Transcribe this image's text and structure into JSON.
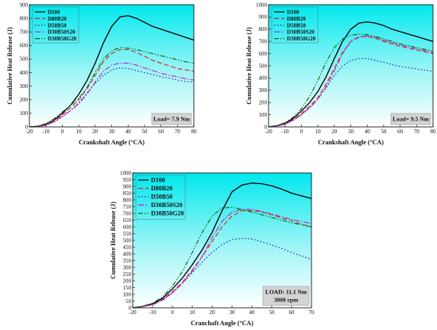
{
  "chart_data": [
    {
      "type": "line",
      "xlabel": "Crankshaft Angle (°CA)",
      "ylabel": "Cumulative Heat Release (J)",
      "xlim": [
        -20,
        80
      ],
      "ylim": [
        0,
        900
      ],
      "xticks": [
        -20,
        -10,
        0,
        10,
        20,
        30,
        40,
        50,
        60,
        70,
        80
      ],
      "yticks": [
        0,
        100,
        200,
        300,
        400,
        500,
        600,
        700,
        800,
        900
      ],
      "annotation": [
        "Load= 7.9 Nm"
      ],
      "legend_position": "top-left",
      "series": [
        {
          "name": "D100",
          "color": "#000000",
          "style": "solid",
          "x": [
            -20,
            -15,
            -10,
            -5,
            0,
            5,
            10,
            15,
            20,
            25,
            30,
            35,
            40,
            45,
            50,
            55,
            60,
            65,
            70,
            75,
            80
          ],
          "y": [
            0,
            5,
            20,
            50,
            100,
            160,
            240,
            340,
            470,
            620,
            740,
            810,
            820,
            800,
            770,
            740,
            720,
            700,
            680,
            660,
            640
          ]
        },
        {
          "name": "D80B20",
          "color": "#e02020",
          "style": "dashed",
          "x": [
            -20,
            -15,
            -10,
            -5,
            0,
            5,
            10,
            15,
            20,
            25,
            30,
            35,
            40,
            45,
            50,
            55,
            60,
            65,
            70,
            75,
            80
          ],
          "y": [
            0,
            4,
            15,
            45,
            90,
            140,
            200,
            280,
            380,
            480,
            540,
            570,
            570,
            550,
            520,
            490,
            470,
            450,
            430,
            420,
            410
          ]
        },
        {
          "name": "D50B50",
          "color": "#1a1aa0",
          "style": "dotted",
          "x": [
            -20,
            -15,
            -10,
            -5,
            0,
            5,
            10,
            15,
            20,
            25,
            30,
            35,
            40,
            45,
            50,
            55,
            60,
            65,
            70,
            75,
            80
          ],
          "y": [
            0,
            3,
            12,
            35,
            75,
            120,
            180,
            250,
            320,
            380,
            420,
            435,
            430,
            415,
            400,
            385,
            370,
            360,
            345,
            335,
            330
          ]
        },
        {
          "name": "D30B50S20",
          "color": "#c020c0",
          "style": "dashdot",
          "x": [
            -20,
            -15,
            -10,
            -5,
            0,
            5,
            10,
            15,
            20,
            25,
            30,
            35,
            40,
            45,
            50,
            55,
            60,
            65,
            70,
            75,
            80
          ],
          "y": [
            0,
            3,
            12,
            38,
            80,
            120,
            170,
            240,
            330,
            410,
            455,
            470,
            470,
            455,
            435,
            415,
            395,
            380,
            370,
            355,
            345
          ]
        },
        {
          "name": "D30B50G20",
          "color": "#0a6a0a",
          "style": "dashdotdot",
          "x": [
            -20,
            -15,
            -10,
            -5,
            0,
            5,
            10,
            15,
            20,
            25,
            30,
            35,
            40,
            45,
            50,
            55,
            60,
            65,
            70,
            75,
            80
          ],
          "y": [
            0,
            6,
            25,
            60,
            110,
            160,
            210,
            290,
            400,
            500,
            560,
            585,
            580,
            570,
            555,
            540,
            525,
            510,
            495,
            480,
            470
          ]
        }
      ]
    },
    {
      "type": "line",
      "xlabel": "Crankshaft Angle (°CA)",
      "ylabel": "Cumulative Heat Release (J)",
      "xlim": [
        -20,
        80
      ],
      "ylim": [
        0,
        1000
      ],
      "xticks": [
        -20,
        -10,
        0,
        10,
        20,
        30,
        40,
        50,
        60,
        70,
        80
      ],
      "yticks": [
        0,
        100,
        200,
        300,
        400,
        500,
        600,
        700,
        800,
        900,
        1000
      ],
      "annotation": [
        "Load= 9.5 Nm"
      ],
      "legend_position": "top-left",
      "series": [
        {
          "name": "D100",
          "color": "#000000",
          "style": "solid",
          "x": [
            -20,
            -15,
            -10,
            -5,
            0,
            5,
            10,
            15,
            20,
            25,
            30,
            35,
            40,
            45,
            50,
            55,
            60,
            65,
            70,
            75,
            80
          ],
          "y": [
            0,
            10,
            30,
            70,
            130,
            200,
            290,
            410,
            560,
            700,
            800,
            850,
            860,
            850,
            830,
            800,
            780,
            760,
            740,
            720,
            700
          ]
        },
        {
          "name": "D80B20",
          "color": "#e02020",
          "style": "dashed",
          "x": [
            -20,
            -15,
            -10,
            -5,
            0,
            5,
            10,
            15,
            20,
            25,
            30,
            35,
            40,
            45,
            50,
            55,
            60,
            65,
            70,
            75,
            80
          ],
          "y": [
            0,
            8,
            25,
            60,
            110,
            170,
            240,
            350,
            480,
            610,
            700,
            735,
            740,
            725,
            700,
            680,
            660,
            645,
            630,
            615,
            600
          ]
        },
        {
          "name": "D50B50",
          "color": "#1a1aa0",
          "style": "dotted",
          "x": [
            -20,
            -15,
            -10,
            -5,
            0,
            5,
            10,
            15,
            20,
            25,
            30,
            35,
            40,
            45,
            50,
            55,
            60,
            65,
            70,
            75,
            80
          ],
          "y": [
            0,
            7,
            22,
            55,
            100,
            160,
            230,
            320,
            420,
            500,
            545,
            560,
            560,
            545,
            530,
            510,
            495,
            485,
            475,
            465,
            455
          ]
        },
        {
          "name": "D30B50S20",
          "color": "#c020c0",
          "style": "dashdot",
          "x": [
            -20,
            -15,
            -10,
            -5,
            0,
            5,
            10,
            15,
            20,
            25,
            30,
            35,
            40,
            45,
            50,
            55,
            60,
            65,
            70,
            75,
            80
          ],
          "y": [
            0,
            7,
            22,
            55,
            100,
            155,
            225,
            330,
            460,
            600,
            700,
            740,
            745,
            735,
            710,
            690,
            670,
            655,
            640,
            625,
            610
          ]
        },
        {
          "name": "D30B50G20",
          "color": "#0a6a0a",
          "style": "dashdotdot",
          "x": [
            -20,
            -15,
            -10,
            -5,
            0,
            5,
            10,
            15,
            20,
            25,
            30,
            35,
            40,
            45,
            50,
            55,
            60,
            65,
            70,
            75,
            80
          ],
          "y": [
            0,
            12,
            35,
            80,
            150,
            250,
            380,
            530,
            650,
            720,
            750,
            760,
            755,
            740,
            720,
            700,
            680,
            665,
            650,
            635,
            620
          ]
        }
      ]
    },
    {
      "type": "line",
      "xlabel": "Cranchaft Angle (°CA)",
      "ylabel": "Cumulative Heat Release (J)",
      "xlim": [
        -20,
        70
      ],
      "ylim": [
        0,
        1000
      ],
      "xticks": [
        -20,
        -10,
        0,
        10,
        20,
        30,
        40,
        50,
        60,
        70
      ],
      "yticks": [
        0,
        50,
        100,
        150,
        200,
        250,
        300,
        350,
        400,
        450,
        500,
        550,
        600,
        650,
        700,
        750,
        800,
        850,
        900,
        950,
        1000
      ],
      "annotation": [
        "LOAD: 11.1 Nm",
        "3000 rpm"
      ],
      "legend_position": "top-left",
      "series": [
        {
          "name": "D100",
          "color": "#000000",
          "style": "solid",
          "x": [
            -20,
            -15,
            -10,
            -5,
            0,
            5,
            10,
            15,
            20,
            25,
            30,
            35,
            40,
            45,
            50,
            55,
            60,
            65,
            70
          ],
          "y": [
            0,
            10,
            30,
            70,
            140,
            220,
            320,
            430,
            560,
            720,
            860,
            910,
            925,
            920,
            905,
            880,
            850,
            830,
            810
          ]
        },
        {
          "name": "D80B20",
          "color": "#e02020",
          "style": "dashed",
          "x": [
            -20,
            -15,
            -10,
            -5,
            0,
            5,
            10,
            15,
            20,
            25,
            30,
            35,
            40,
            45,
            50,
            55,
            60,
            65,
            70
          ],
          "y": [
            0,
            8,
            25,
            60,
            120,
            190,
            280,
            380,
            490,
            600,
            680,
            720,
            720,
            710,
            690,
            665,
            645,
            620,
            600
          ]
        },
        {
          "name": "D50B50",
          "color": "#1a1aa0",
          "style": "dotted",
          "x": [
            -20,
            -15,
            -10,
            -5,
            0,
            5,
            10,
            15,
            20,
            25,
            30,
            35,
            40,
            45,
            50,
            55,
            60,
            65,
            70
          ],
          "y": [
            0,
            8,
            25,
            60,
            110,
            180,
            260,
            340,
            410,
            470,
            505,
            515,
            510,
            490,
            465,
            440,
            410,
            385,
            360
          ]
        },
        {
          "name": "D30B50S20",
          "color": "#c020c0",
          "style": "dashdot",
          "x": [
            -20,
            -15,
            -10,
            -5,
            0,
            5,
            10,
            15,
            20,
            25,
            30,
            35,
            40,
            45,
            50,
            55,
            60,
            65,
            70
          ],
          "y": [
            0,
            8,
            22,
            55,
            110,
            180,
            270,
            380,
            520,
            640,
            710,
            730,
            730,
            715,
            695,
            675,
            655,
            640,
            625
          ]
        },
        {
          "name": "D30B50G20",
          "color": "#0a6a0a",
          "style": "dashdotdot",
          "x": [
            -20,
            -15,
            -10,
            -5,
            0,
            5,
            10,
            15,
            20,
            25,
            30,
            35,
            40,
            45,
            50,
            55,
            60,
            65,
            70
          ],
          "y": [
            0,
            12,
            35,
            80,
            160,
            270,
            410,
            560,
            680,
            740,
            745,
            730,
            710,
            690,
            670,
            650,
            630,
            615,
            600
          ]
        }
      ]
    }
  ]
}
